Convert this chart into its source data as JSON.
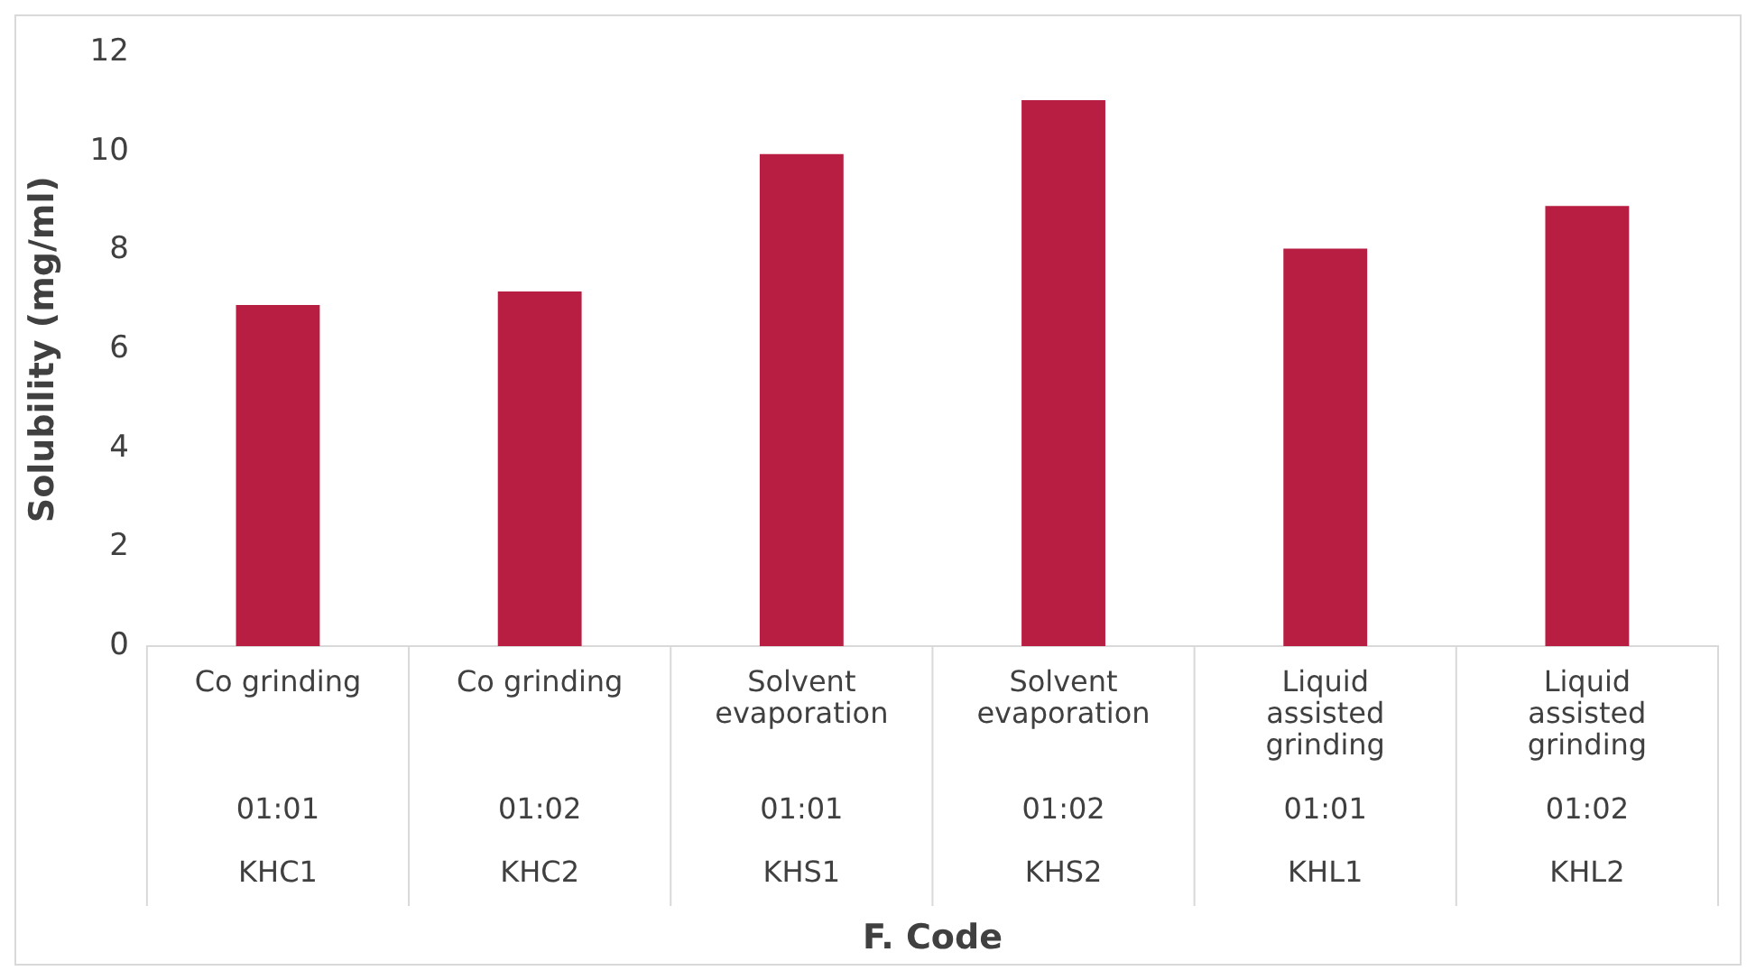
{
  "chart_data": {
    "type": "bar",
    "xlabel": "F. Code",
    "ylabel": "Solubility (mg/ml)",
    "categories": [
      "Co grinding\n01:01\nKHC1",
      "Co grinding\n01:02\nKHC2",
      "Solvent evaporation\n01:01\nKHS1",
      "Solvent evaporation\n01:02\nKHS2",
      "Liquid assisted grinding\n01:01\nKHL1",
      "Liquid assisted grinding\n01:02\nKHL2"
    ],
    "values": [
      6.9,
      7.17,
      9.95,
      11.04,
      8.04,
      8.9
    ],
    "color": "#b81e41",
    "ylim": [
      0,
      12
    ],
    "yticks": [
      0,
      2,
      4,
      6,
      8,
      10,
      12
    ],
    "grid": false,
    "legend": false
  }
}
